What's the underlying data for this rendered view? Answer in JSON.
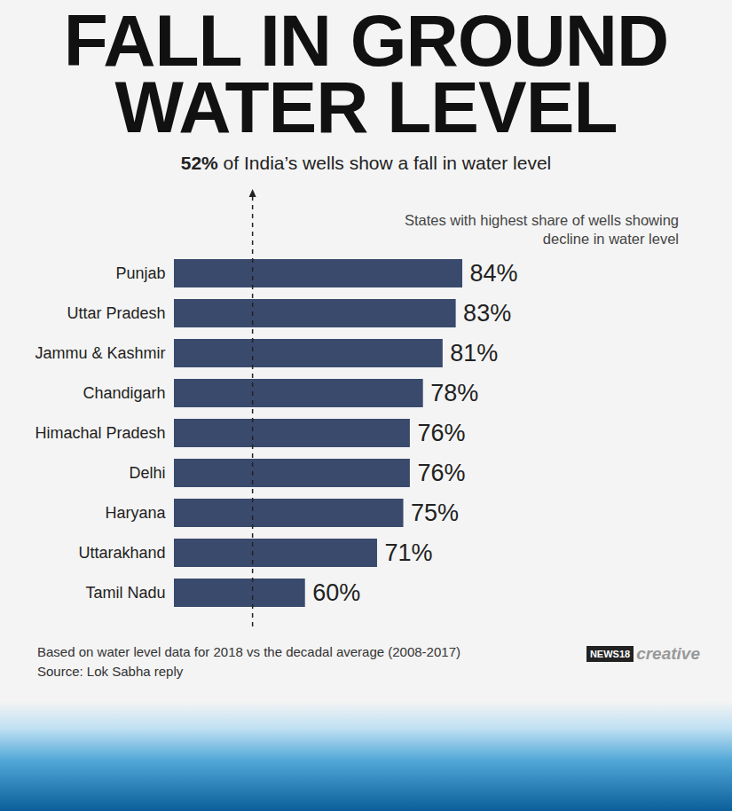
{
  "chart_data": {
    "type": "bar",
    "orientation": "horizontal",
    "title": "FALL IN GROUND WATER LEVEL",
    "subtitle": "52% of India’s wells show a fall in water level",
    "annotation": "States with highest share of wells showing decline in water level",
    "categories": [
      "Punjab",
      "Uttar Pradesh",
      "Jammu & Kashmir",
      "Chandigarh",
      "Himachal Pradesh",
      "Delhi",
      "Haryana",
      "Uttarakhand",
      "Tamil Nadu"
    ],
    "values": [
      84,
      83,
      81,
      78,
      76,
      76,
      75,
      71,
      60
    ],
    "value_labels": [
      "84%",
      "83%",
      "81%",
      "78%",
      "76%",
      "76%",
      "75%",
      "71%",
      "60%"
    ],
    "data_labels": true,
    "color": "#394a6d",
    "xlim": [
      40,
      84
    ],
    "xticks": [],
    "tick_labels": "y",
    "reference_line": 52,
    "notes": [
      "Based on water level data for 2018 vs the decadal average (2008-2017)",
      "Source: Lok Sabha reply"
    ],
    "credit": [
      "NEWS18",
      "creative"
    ]
  }
}
